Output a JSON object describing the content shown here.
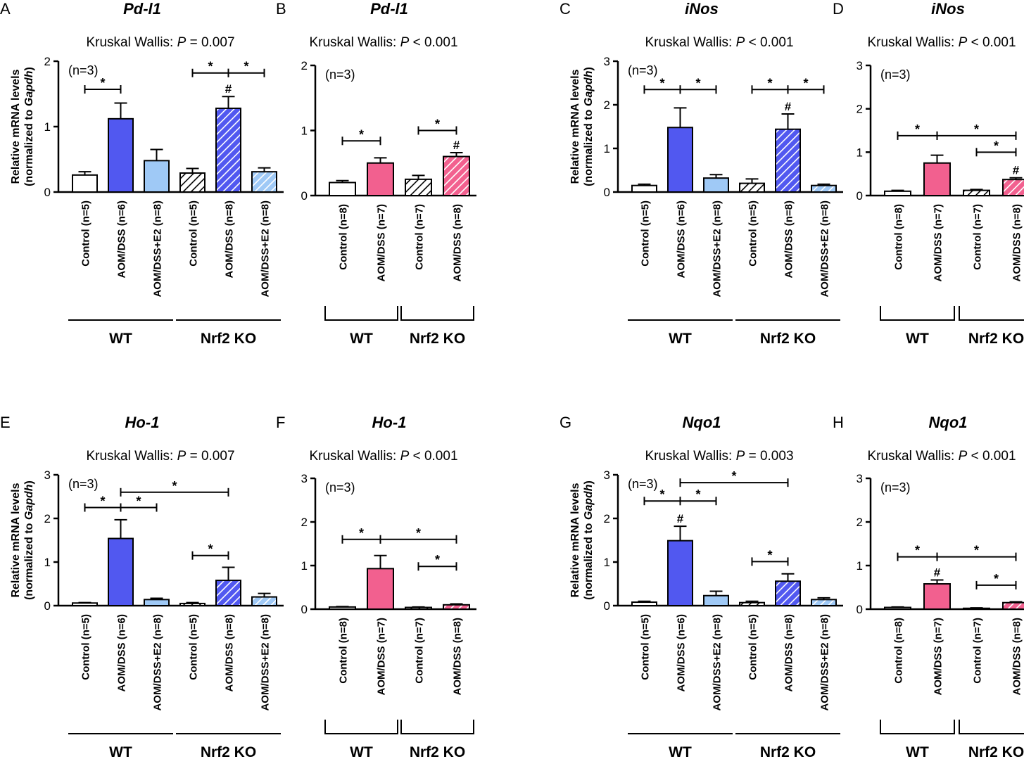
{
  "colors": {
    "wt_ctrl": "#ffffff",
    "aom_blue": "#5158f0",
    "e2_blue": "#9fc9f6",
    "aom_pink": "#f2608f",
    "ko_ctrl": "#ffffff",
    "ko_aom_blue": "#5158f0",
    "ko_e2_blue": "#9fc9f6",
    "ko_aom_pink": "#f2608f"
  },
  "chart_data": [
    {
      "type": "bar",
      "panel": "A",
      "title": "Pd-l1",
      "kruskal": {
        "prefix": "Kruskal Wallis: ",
        "p": "P",
        "suffix": " = 0.007"
      },
      "n_note": "(n=3)",
      "ylabel": "Relative mRNA levels",
      "ylabel2": "(normalized to Gapdh)",
      "ylim": [
        0,
        2
      ],
      "yticks": [
        "0",
        "1",
        "2"
      ],
      "categories": [
        "Control (n=5)",
        "AOM/DSS (n=6)",
        "AOM/DSS+E2 (n=8)",
        "Control (n=5)",
        "AOM/DSS (n=8)",
        "AOM/DSS+E2 (n=8)"
      ],
      "values": [
        0.26,
        1.12,
        0.48,
        0.29,
        1.28,
        0.31
      ],
      "errors": [
        0.05,
        0.24,
        0.17,
        0.07,
        0.18,
        0.06
      ],
      "hash": [
        false,
        false,
        false,
        false,
        true,
        false
      ],
      "groups": [
        "WT",
        "Nrf2 KO"
      ]
    },
    {
      "type": "bar",
      "panel": "B",
      "title": "Pd-l1",
      "kruskal": {
        "prefix": "Kruskal Wallis: ",
        "p": "P",
        "suffix": " < 0.001"
      },
      "n_note": "(n=3)",
      "ylabel": "",
      "ylabel2": "",
      "ylim": [
        0,
        2
      ],
      "yticks": [
        "0",
        "1",
        "2"
      ],
      "categories": [
        "Control (n=8)",
        "AOM/DSS (n=7)",
        "Control (n=7)",
        "AOM/DSS (n=8)"
      ],
      "values": [
        0.2,
        0.5,
        0.25,
        0.6
      ],
      "errors": [
        0.03,
        0.08,
        0.06,
        0.06
      ],
      "hash": [
        false,
        false,
        false,
        true
      ],
      "groups": [
        "WT",
        "Nrf2 KO"
      ]
    },
    {
      "type": "bar",
      "panel": "C",
      "title": "iNos",
      "kruskal": {
        "prefix": "Kruskal Wallis: ",
        "p": "P",
        "suffix": " < 0.001"
      },
      "n_note": "(n=3)",
      "ylabel": "Relative mRNA levels",
      "ylabel2": "(normalized to Gapdh)",
      "ylim": [
        0,
        3
      ],
      "yticks": [
        "0",
        "1",
        "2",
        "3"
      ],
      "categories": [
        "Control (n=5)",
        "AOM/DSS (n=6)",
        "AOM/DSS+E2 (n=8)",
        "Control (n=5)",
        "AOM/DSS (n=8)",
        "AOM/DSS+E2 (n=8)"
      ],
      "values": [
        0.15,
        1.48,
        0.32,
        0.2,
        1.44,
        0.15
      ],
      "errors": [
        0.03,
        0.45,
        0.08,
        0.1,
        0.35,
        0.03
      ],
      "hash": [
        false,
        false,
        false,
        false,
        true,
        false
      ],
      "groups": [
        "WT",
        "Nrf2 KO"
      ]
    },
    {
      "type": "bar",
      "panel": "D",
      "title": "iNos",
      "kruskal": {
        "prefix": "Kruskal Wallis: ",
        "p": "P",
        "suffix": " < 0.001"
      },
      "n_note": "(n=3)",
      "ylabel": "",
      "ylabel2": "",
      "ylim": [
        0,
        3
      ],
      "yticks": [
        "0",
        "1",
        "2",
        "3"
      ],
      "categories": [
        "Control (n=8)",
        "AOM/DSS (n=7)",
        "Control (n=7)",
        "AOM/DSS (n=8)"
      ],
      "values": [
        0.1,
        0.75,
        0.12,
        0.37
      ],
      "errors": [
        0.02,
        0.18,
        0.02,
        0.04
      ],
      "hash": [
        false,
        false,
        false,
        true
      ],
      "groups": [
        "WT",
        "Nrf2 KO"
      ]
    },
    {
      "type": "bar",
      "panel": "E",
      "title": "Ho-1",
      "kruskal": {
        "prefix": "Kruskal Wallis: ",
        "p": "P",
        "suffix": " = 0.007"
      },
      "n_note": "(n=3)",
      "ylabel": "Relative mRNA levels",
      "ylabel2": "(normalized to Gapdh)",
      "ylim": [
        0,
        3
      ],
      "yticks": [
        "0",
        "1",
        "2",
        "3"
      ],
      "categories": [
        "Control (n=5)",
        "AOM/DSS (n=6)",
        "AOM/DSS+E2 (n=8)",
        "Control (n=5)",
        "AOM/DSS (n=8)",
        "AOM/DSS+E2 (n=8)"
      ],
      "values": [
        0.06,
        1.54,
        0.14,
        0.05,
        0.58,
        0.2
      ],
      "errors": [
        0.01,
        0.43,
        0.03,
        0.02,
        0.3,
        0.08
      ],
      "hash": [
        false,
        false,
        false,
        false,
        false,
        false
      ],
      "groups": [
        "WT",
        "Nrf2 KO"
      ]
    },
    {
      "type": "bar",
      "panel": "F",
      "title": "Ho-1",
      "kruskal": {
        "prefix": "Kruskal Wallis: ",
        "p": "P",
        "suffix": " < 0.001"
      },
      "n_note": "(n=3)",
      "ylabel": "",
      "ylabel2": "",
      "ylim": [
        0,
        3
      ],
      "yticks": [
        "0",
        "1",
        "2",
        "3"
      ],
      "categories": [
        "Control (n=8)",
        "AOM/DSS (n=7)",
        "Control (n=7)",
        "AOM/DSS (n=8)"
      ],
      "values": [
        0.05,
        0.93,
        0.04,
        0.1
      ],
      "errors": [
        0.01,
        0.3,
        0.01,
        0.02
      ],
      "hash": [
        false,
        false,
        false,
        false
      ],
      "groups": [
        "WT",
        "Nrf2 KO"
      ]
    },
    {
      "type": "bar",
      "panel": "G",
      "title": "Nqo1",
      "kruskal": {
        "prefix": "Kruskal Wallis: ",
        "p": "P",
        "suffix": " = 0.003"
      },
      "n_note": "(n=3)",
      "ylabel": "Relative mRNA levels",
      "ylabel2": "(normalized to Gapdh)",
      "ylim": [
        0,
        3
      ],
      "yticks": [
        "0",
        "1",
        "2",
        "3"
      ],
      "categories": [
        "Control (n=5)",
        "AOM/DSS (n=6)",
        "AOM/DSS+E2 (n=8)",
        "Control (n=5)",
        "AOM/DSS (n=8)",
        "AOM/DSS+E2 (n=8)"
      ],
      "values": [
        0.08,
        1.49,
        0.23,
        0.07,
        0.56,
        0.14
      ],
      "errors": [
        0.02,
        0.33,
        0.1,
        0.03,
        0.17,
        0.04
      ],
      "hash": [
        false,
        true,
        false,
        false,
        false,
        false
      ],
      "groups": [
        "WT",
        "Nrf2 KO"
      ]
    },
    {
      "type": "bar",
      "panel": "H",
      "title": "Nqo1",
      "kruskal": {
        "prefix": "Kruskal Wallis: ",
        "p": "P",
        "suffix": " < 0.001"
      },
      "n_note": "(n=3)",
      "ylabel": "",
      "ylabel2": "",
      "ylim": [
        0,
        3
      ],
      "yticks": [
        "0",
        "1",
        "2",
        "3"
      ],
      "categories": [
        "Control (n=8)",
        "AOM/DSS (n=7)",
        "Control (n=7)",
        "AOM/DSS (n=8)"
      ],
      "values": [
        0.04,
        0.58,
        0.02,
        0.15
      ],
      "errors": [
        0.01,
        0.09,
        0.01,
        0.02
      ],
      "hash": [
        false,
        true,
        false,
        false
      ],
      "groups": [
        "WT",
        "Nrf2 KO"
      ]
    }
  ],
  "symbols": {
    "star": "*",
    "hash": "#"
  }
}
